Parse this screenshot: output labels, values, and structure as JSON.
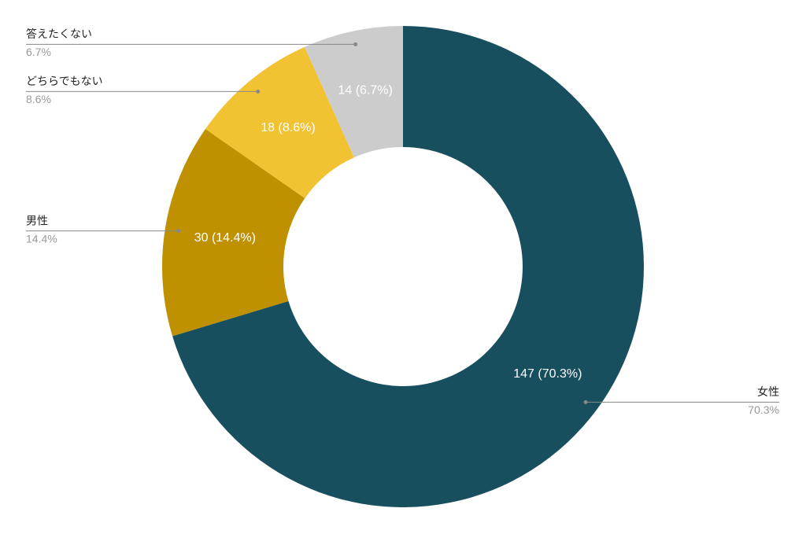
{
  "chart_data": {
    "type": "donut",
    "categories": [
      "女性",
      "男性",
      "どちらでもない",
      "答えたくない"
    ],
    "values": [
      147,
      30,
      18,
      14
    ],
    "value_labels": [
      "147 (70.3%)",
      "30 (14.4%)",
      "18 (8.6%)",
      "14 (6.7%)"
    ],
    "percentages": [
      {
        "value": 70.3,
        "label": "70.3%"
      },
      {
        "value": 14.4,
        "label": "14.4%"
      },
      {
        "value": 8.6,
        "label": "8.6%"
      },
      {
        "value": 6.7,
        "label": "6.7%"
      }
    ],
    "colors": [
      "#174f5f",
      "#bf9000",
      "#f1c232",
      "#cccccc"
    ]
  }
}
